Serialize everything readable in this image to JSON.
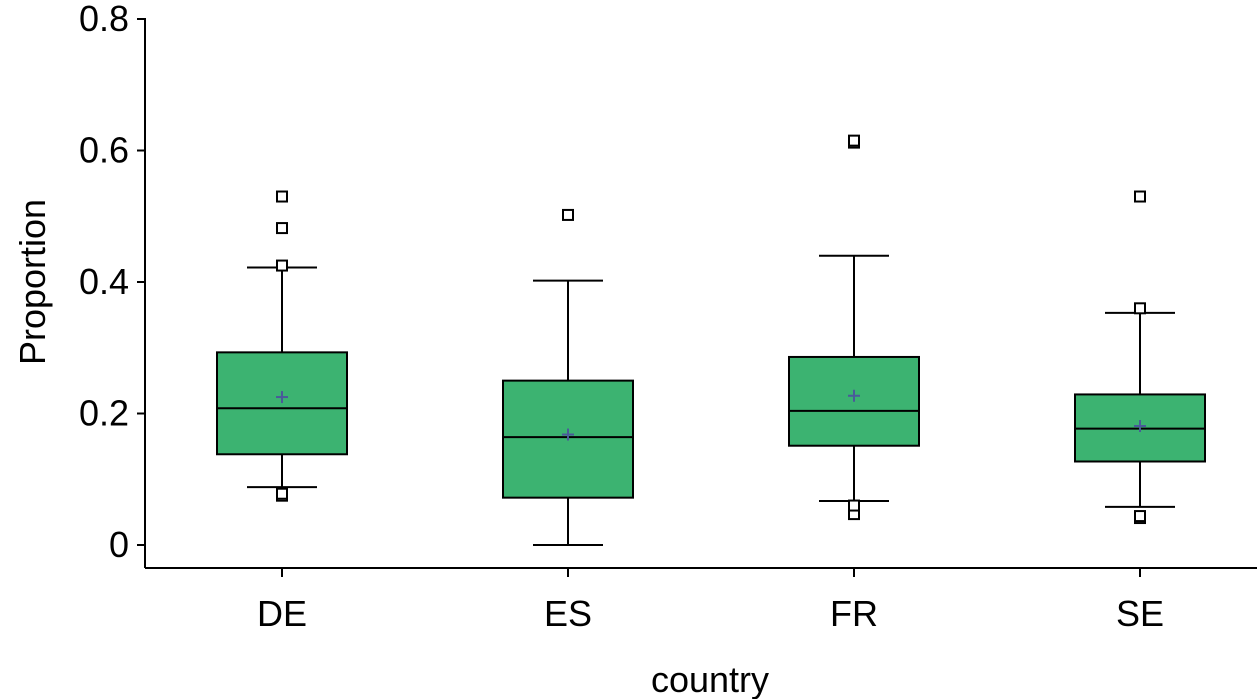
{
  "chart_data": {
    "type": "box",
    "xlabel": "country",
    "ylabel": "Proportion",
    "ylim": [
      0,
      0.8
    ],
    "yticks": [
      "0",
      "0.2",
      "0.4",
      "0.6",
      "0.8"
    ],
    "ytick_values": [
      0,
      0.2,
      0.4,
      0.6,
      0.8
    ],
    "categories": [
      "DE",
      "ES",
      "FR",
      "SE"
    ],
    "boxes": [
      {
        "category": "DE",
        "whisker_low": 0.088,
        "q1": 0.138,
        "median": 0.208,
        "q3": 0.293,
        "whisker_high": 0.422,
        "mean": 0.225,
        "outliers": [
          0.075,
          0.078,
          0.425,
          0.482,
          0.53
        ]
      },
      {
        "category": "ES",
        "whisker_low": 0.0,
        "q1": 0.072,
        "median": 0.164,
        "q3": 0.25,
        "whisker_high": 0.402,
        "mean": 0.168,
        "outliers": [
          0.502
        ]
      },
      {
        "category": "FR",
        "whisker_low": 0.067,
        "q1": 0.151,
        "median": 0.204,
        "q3": 0.286,
        "whisker_high": 0.44,
        "mean": 0.227,
        "outliers": [
          0.047,
          0.06,
          0.612,
          0.615
        ]
      },
      {
        "category": "SE",
        "whisker_low": 0.058,
        "q1": 0.127,
        "median": 0.177,
        "q3": 0.229,
        "whisker_high": 0.353,
        "mean": 0.181,
        "outliers": [
          0.041,
          0.044,
          0.36,
          0.53
        ]
      }
    ],
    "colors": {
      "box_fill": "#3cb371",
      "box_stroke": "#000000",
      "mean_marker": "#4a5a9a",
      "outlier_stroke": "#000000"
    },
    "grid": false,
    "legend": "none"
  }
}
